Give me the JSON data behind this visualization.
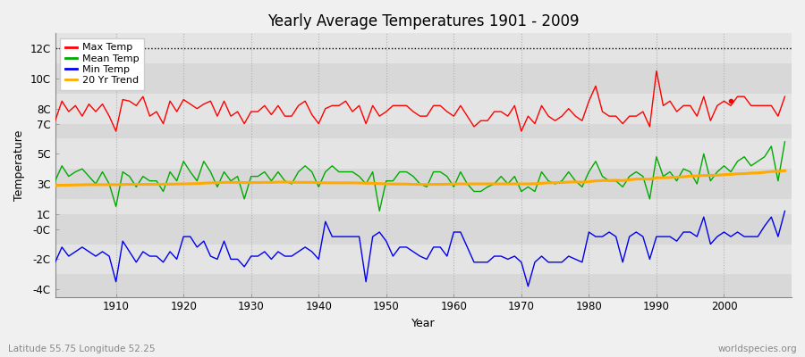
{
  "title": "Yearly Average Temperatures 1901 - 2009",
  "xlabel": "Year",
  "ylabel": "Temperature",
  "bg_color": "#f0f0f0",
  "plot_bg_color": "#e8e8e8",
  "grid_color": "#c8c8c8",
  "max_temp_color": "#ff0000",
  "mean_temp_color": "#00aa00",
  "min_temp_color": "#0000ee",
  "trend_color": "#ffaa00",
  "subtitle_left": "Latitude 55.75 Longitude 52.25",
  "subtitle_right": "worldspecies.org",
  "years": [
    1901,
    1902,
    1903,
    1904,
    1905,
    1906,
    1907,
    1908,
    1909,
    1910,
    1911,
    1912,
    1913,
    1914,
    1915,
    1916,
    1917,
    1918,
    1919,
    1920,
    1921,
    1922,
    1923,
    1924,
    1925,
    1926,
    1927,
    1928,
    1929,
    1930,
    1931,
    1932,
    1933,
    1934,
    1935,
    1936,
    1937,
    1938,
    1939,
    1940,
    1941,
    1942,
    1943,
    1944,
    1945,
    1946,
    1947,
    1948,
    1949,
    1950,
    1951,
    1952,
    1953,
    1954,
    1955,
    1956,
    1957,
    1958,
    1959,
    1960,
    1961,
    1962,
    1963,
    1964,
    1965,
    1966,
    1967,
    1968,
    1969,
    1970,
    1971,
    1972,
    1973,
    1974,
    1975,
    1976,
    1977,
    1978,
    1979,
    1980,
    1981,
    1982,
    1983,
    1984,
    1985,
    1986,
    1987,
    1988,
    1989,
    1990,
    1991,
    1992,
    1993,
    1994,
    1995,
    1996,
    1997,
    1998,
    1999,
    2000,
    2001,
    2002,
    2003,
    2004,
    2005,
    2006,
    2007,
    2008,
    2009
  ],
  "max_temp": [
    7.2,
    8.5,
    7.8,
    8.2,
    7.5,
    8.3,
    7.8,
    8.3,
    7.5,
    6.5,
    8.6,
    8.5,
    8.2,
    8.8,
    7.5,
    7.8,
    7.0,
    8.5,
    7.8,
    8.6,
    8.3,
    8.0,
    8.3,
    8.5,
    7.5,
    8.5,
    7.5,
    7.8,
    7.0,
    7.8,
    7.8,
    8.2,
    7.6,
    8.2,
    7.5,
    7.5,
    8.2,
    8.5,
    7.6,
    7.0,
    8.0,
    8.2,
    8.2,
    8.5,
    7.8,
    8.2,
    7.0,
    8.2,
    7.5,
    7.8,
    8.2,
    8.2,
    8.2,
    7.8,
    7.5,
    7.5,
    8.2,
    8.2,
    7.8,
    7.5,
    8.2,
    7.5,
    6.8,
    7.2,
    7.2,
    7.8,
    7.8,
    7.5,
    8.2,
    6.5,
    7.5,
    7.0,
    8.2,
    7.5,
    7.2,
    7.5,
    8.0,
    7.5,
    7.2,
    8.5,
    9.5,
    7.8,
    7.5,
    7.5,
    7.0,
    7.5,
    7.5,
    7.8,
    6.8,
    10.5,
    8.2,
    8.5,
    7.8,
    8.2,
    8.2,
    7.5,
    8.8,
    7.2,
    8.2,
    8.5,
    8.2,
    8.8,
    8.8,
    8.2,
    8.2,
    8.2,
    8.2,
    7.5,
    8.8
  ],
  "mean_temp": [
    3.2,
    4.2,
    3.5,
    3.8,
    4.0,
    3.5,
    3.0,
    3.8,
    3.0,
    1.5,
    3.8,
    3.5,
    2.8,
    3.5,
    3.2,
    3.2,
    2.5,
    3.8,
    3.2,
    4.5,
    3.8,
    3.2,
    4.5,
    3.8,
    2.8,
    3.8,
    3.2,
    3.5,
    2.0,
    3.5,
    3.5,
    3.8,
    3.2,
    3.8,
    3.2,
    3.0,
    3.8,
    4.2,
    3.8,
    2.8,
    3.8,
    4.2,
    3.8,
    3.8,
    3.8,
    3.5,
    3.0,
    3.8,
    1.2,
    3.2,
    3.2,
    3.8,
    3.8,
    3.5,
    3.0,
    2.8,
    3.8,
    3.8,
    3.5,
    2.8,
    3.8,
    3.0,
    2.5,
    2.5,
    2.8,
    3.0,
    3.5,
    3.0,
    3.5,
    2.5,
    2.8,
    2.5,
    3.8,
    3.2,
    3.0,
    3.2,
    3.8,
    3.2,
    2.8,
    3.8,
    4.5,
    3.5,
    3.2,
    3.2,
    2.8,
    3.5,
    3.8,
    3.5,
    2.0,
    4.8,
    3.5,
    3.8,
    3.2,
    4.0,
    3.8,
    3.0,
    5.0,
    3.2,
    3.8,
    4.2,
    3.8,
    4.5,
    4.8,
    4.2,
    4.5,
    4.8,
    5.5,
    3.2,
    5.8
  ],
  "min_temp": [
    -2.2,
    -1.2,
    -1.8,
    -1.5,
    -1.2,
    -1.5,
    -1.8,
    -1.5,
    -1.8,
    -3.5,
    -0.8,
    -1.5,
    -2.2,
    -1.5,
    -1.8,
    -1.8,
    -2.2,
    -1.5,
    -2.0,
    -0.5,
    -0.5,
    -1.2,
    -0.8,
    -1.8,
    -2.0,
    -0.8,
    -2.0,
    -2.0,
    -2.5,
    -1.8,
    -1.8,
    -1.5,
    -2.0,
    -1.5,
    -1.8,
    -1.8,
    -1.5,
    -1.2,
    -1.5,
    -2.0,
    0.5,
    -0.5,
    -0.5,
    -0.5,
    -0.5,
    -0.5,
    -3.5,
    -0.5,
    -0.2,
    -0.8,
    -1.8,
    -1.2,
    -1.2,
    -1.5,
    -1.8,
    -2.0,
    -1.2,
    -1.2,
    -1.8,
    -0.2,
    -0.2,
    -1.2,
    -2.2,
    -2.2,
    -2.2,
    -1.8,
    -1.8,
    -2.0,
    -1.8,
    -2.2,
    -3.8,
    -2.2,
    -1.8,
    -2.2,
    -2.2,
    -2.2,
    -1.8,
    -2.0,
    -2.2,
    -0.2,
    -0.5,
    -0.5,
    -0.2,
    -0.5,
    -2.2,
    -0.5,
    -0.2,
    -0.5,
    -2.0,
    -0.5,
    -0.5,
    -0.5,
    -0.8,
    -0.2,
    -0.2,
    -0.5,
    0.8,
    -1.0,
    -0.5,
    -0.2,
    -0.5,
    -0.2,
    -0.5,
    -0.5,
    -0.5,
    0.2,
    0.8,
    -0.5,
    1.2
  ],
  "trend_20yr": [
    2.9,
    2.91,
    2.92,
    2.93,
    2.94,
    2.95,
    2.95,
    2.95,
    2.95,
    2.95,
    2.96,
    2.97,
    2.97,
    2.97,
    2.97,
    2.97,
    2.98,
    2.98,
    2.99,
    3.0,
    3.01,
    3.02,
    3.05,
    3.07,
    3.08,
    3.1,
    3.1,
    3.1,
    3.09,
    3.09,
    3.09,
    3.1,
    3.1,
    3.12,
    3.12,
    3.11,
    3.1,
    3.1,
    3.1,
    3.08,
    3.07,
    3.07,
    3.07,
    3.07,
    3.07,
    3.06,
    3.05,
    3.04,
    3.02,
    3.0,
    2.99,
    2.99,
    2.99,
    2.97,
    2.97,
    2.96,
    2.97,
    2.97,
    2.98,
    2.99,
    3.0,
    3.0,
    3.0,
    3.0,
    3.0,
    3.0,
    3.0,
    3.0,
    3.0,
    3.0,
    3.0,
    3.01,
    3.04,
    3.07,
    3.08,
    3.09,
    3.12,
    3.13,
    3.11,
    3.15,
    3.2,
    3.22,
    3.23,
    3.24,
    3.22,
    3.27,
    3.32,
    3.33,
    3.31,
    3.4,
    3.41,
    3.42,
    3.45,
    3.47,
    3.52,
    3.53,
    3.56,
    3.57,
    3.57,
    3.62,
    3.63,
    3.67,
    3.68,
    3.72,
    3.73,
    3.77,
    3.82,
    3.83,
    3.88
  ],
  "ytick_vals": [
    -4,
    -2,
    0,
    1,
    3,
    5,
    7,
    8,
    10,
    12
  ],
  "ytick_labels": [
    "-4C",
    "-2C",
    "-0C",
    "1C",
    "3C",
    "5C",
    "7C",
    "8C",
    "10C",
    "12C"
  ],
  "xticks": [
    1910,
    1920,
    1930,
    1940,
    1950,
    1960,
    1970,
    1980,
    1990,
    2000
  ],
  "dot_x": 2001,
  "dot_y": 8.5
}
